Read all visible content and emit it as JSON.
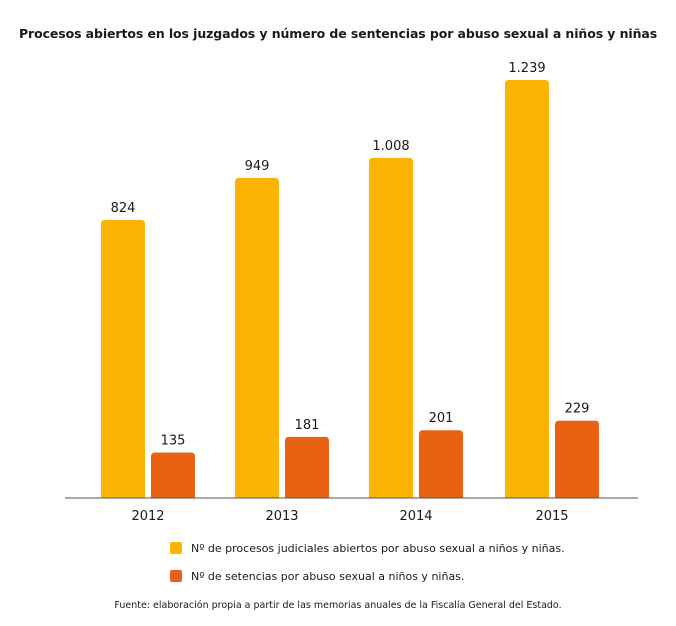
{
  "title": "Procesos abiertos en los juzgados y número de sentencias por abuso sexual a niños y niñas",
  "source": "Fuente: elaboración propia a partir de las memorias anuales de la Fiscalía General del Estado.",
  "colors": {
    "series1": "#FBB401",
    "series2": "#E96212",
    "axis": "#555555"
  },
  "chart_data": {
    "type": "bar",
    "categories": [
      "2012",
      "2013",
      "2014",
      "2015"
    ],
    "series": [
      {
        "name": "Nº de procesos judiciales abiertos por abuso sexual a niños y niñas.",
        "values": [
          824,
          949,
          1008,
          1239
        ],
        "labels": [
          "824",
          "949",
          "1.008",
          "1.239"
        ]
      },
      {
        "name": "Nº de setencias por abuso sexual a niños y niñas.",
        "values": [
          135,
          181,
          201,
          229
        ],
        "labels": [
          "135",
          "181",
          "201",
          "229"
        ]
      }
    ],
    "ylim": [
      0,
      1300
    ],
    "grid": false,
    "legend": "bottom"
  }
}
